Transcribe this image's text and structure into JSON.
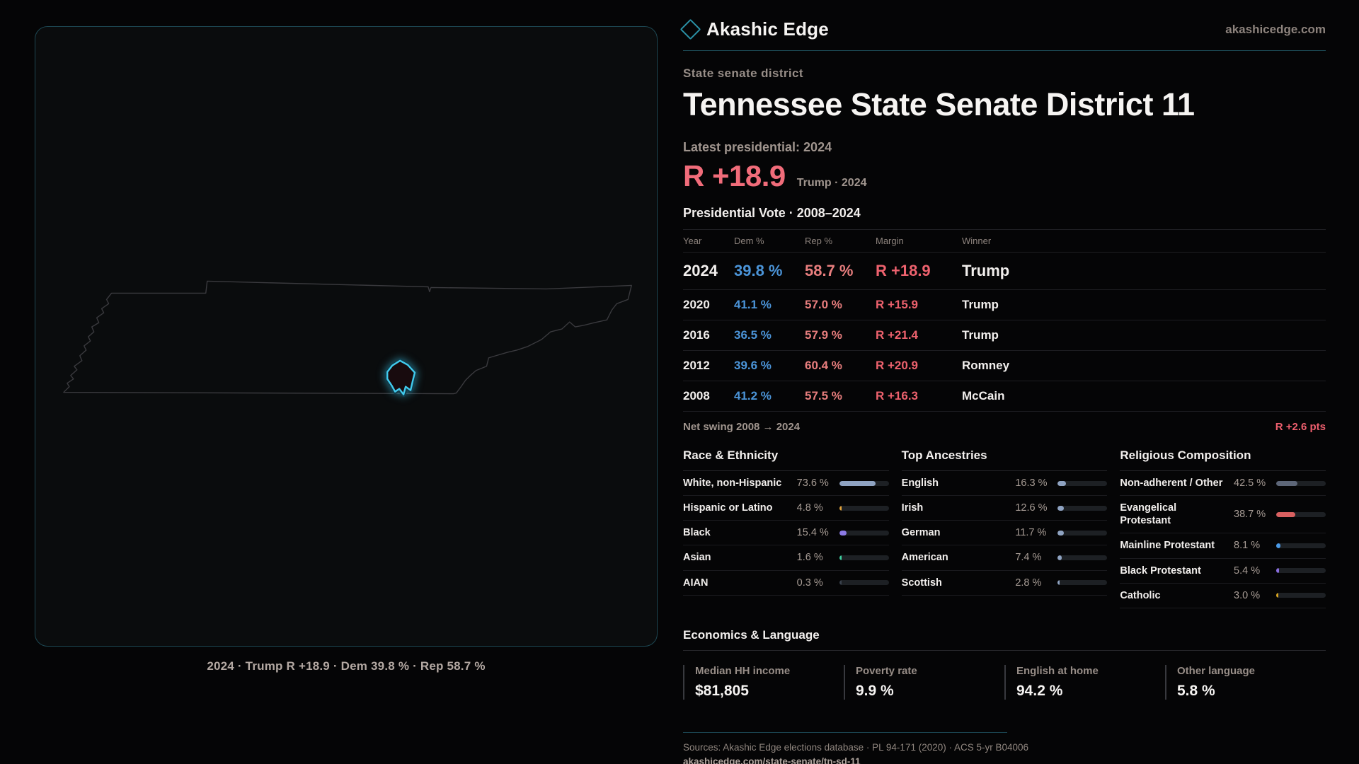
{
  "brand": {
    "name": "Akashic Edge",
    "domain": "akashicedge.com",
    "accent": "#2b93a8"
  },
  "page": {
    "subtitle": "State senate district",
    "title": "Tennessee State Senate District 11"
  },
  "latest": {
    "label": "Latest presidential: 2024",
    "margin": "R +18.9",
    "detail": "Trump · 2024",
    "margin_color": "#f16c7a"
  },
  "vote_table": {
    "title": "Presidential Vote · 2008–2024",
    "headers": [
      "Year",
      "Dem %",
      "Rep %",
      "Margin",
      "Winner"
    ],
    "rows": [
      {
        "year": "2024",
        "dem": "39.8 %",
        "rep": "58.7 %",
        "margin": "R +18.9",
        "winner": "Trump",
        "featured": true
      },
      {
        "year": "2020",
        "dem": "41.1 %",
        "rep": "57.0 %",
        "margin": "R +15.9",
        "winner": "Trump",
        "featured": false
      },
      {
        "year": "2016",
        "dem": "36.5 %",
        "rep": "57.9 %",
        "margin": "R +21.4",
        "winner": "Trump",
        "featured": false
      },
      {
        "year": "2012",
        "dem": "39.6 %",
        "rep": "60.4 %",
        "margin": "R +20.9",
        "winner": "Romney",
        "featured": false
      },
      {
        "year": "2008",
        "dem": "41.2 %",
        "rep": "57.5 %",
        "margin": "R +16.3",
        "winner": "McCain",
        "featured": false
      }
    ],
    "dem_color": "#4b94d8",
    "rep_color": "#e87e7e",
    "margin_color": "#ee626e",
    "net_swing_label": "Net swing 2008 → 2024",
    "net_swing_value": "R +2.6 pts"
  },
  "demographics": [
    {
      "heading": "Race & Ethnicity",
      "rows": [
        {
          "label": "White, non-Hispanic",
          "value": "73.6 %",
          "pct": 73.6,
          "color": "#8fa3c2"
        },
        {
          "label": "Hispanic or Latino",
          "value": "4.8 %",
          "pct": 4.8,
          "color": "#e3a43c"
        },
        {
          "label": "Black",
          "value": "15.4 %",
          "pct": 15.4,
          "color": "#8d7be6"
        },
        {
          "label": "Asian",
          "value": "1.6 %",
          "pct": 1.6,
          "color": "#3fd0a0"
        },
        {
          "label": "AIAN",
          "value": "0.3 %",
          "pct": 0.3,
          "color": "#8fa3c2"
        }
      ]
    },
    {
      "heading": "Top Ancestries",
      "rows": [
        {
          "label": "English",
          "value": "16.3 %",
          "pct": 16.3,
          "color": "#8fa3c2"
        },
        {
          "label": "Irish",
          "value": "12.6 %",
          "pct": 12.6,
          "color": "#8fa3c2"
        },
        {
          "label": "German",
          "value": "11.7 %",
          "pct": 11.7,
          "color": "#8fa3c2"
        },
        {
          "label": "American",
          "value": "7.4 %",
          "pct": 7.4,
          "color": "#8fa3c2"
        },
        {
          "label": "Scottish",
          "value": "2.8 %",
          "pct": 2.8,
          "color": "#8fa3c2"
        }
      ]
    },
    {
      "heading": "Religious Composition",
      "rows": [
        {
          "label": "Non-adherent / Other",
          "value": "42.5 %",
          "pct": 42.5,
          "color": "#5d6678"
        },
        {
          "label": "Evangelical Protestant",
          "value": "38.7 %",
          "pct": 38.7,
          "color": "#d96060"
        },
        {
          "label": "Mainline Protestant",
          "value": "8.1 %",
          "pct": 8.1,
          "color": "#4a9ae8"
        },
        {
          "label": "Black Protestant",
          "value": "5.4 %",
          "pct": 5.4,
          "color": "#8a6ee0"
        },
        {
          "label": "Catholic",
          "value": "3.0 %",
          "pct": 3.0,
          "color": "#d9a520"
        }
      ]
    }
  ],
  "economics": {
    "heading": "Economics & Language",
    "stats": [
      {
        "label": "Median HH income",
        "value": "$81,805"
      },
      {
        "label": "Poverty rate",
        "value": "9.9 %"
      },
      {
        "label": "English at home",
        "value": "94.2 %"
      },
      {
        "label": "Other language",
        "value": "5.8 %"
      }
    ]
  },
  "map": {
    "caption": "2024 · Trump R +18.9 · Dem 39.8 % · Rep 58.7 %",
    "district_accent": "#41cbee"
  },
  "footer": {
    "sources": "Sources: Akashic Edge elections database · PL 94-171 (2020) · ACS 5-yr B04006",
    "permalink": "akashicedge.com/state-senate/tn-sd-11"
  },
  "chart_data": [
    {
      "type": "table",
      "title": "Presidential Vote · 2008–2024",
      "columns": [
        "Year",
        "Dem %",
        "Rep %",
        "Margin",
        "Winner"
      ],
      "rows": [
        [
          2024,
          39.8,
          58.7,
          "R +18.9",
          "Trump"
        ],
        [
          2020,
          41.1,
          57.0,
          "R +15.9",
          "Trump"
        ],
        [
          2016,
          36.5,
          57.9,
          "R +21.4",
          "Trump"
        ],
        [
          2012,
          39.6,
          60.4,
          "R +20.9",
          "Romney"
        ],
        [
          2008,
          41.2,
          57.5,
          "R +16.3",
          "McCain"
        ]
      ],
      "annotations": [
        "Net swing 2008 → 2024: R +2.6 pts",
        "Latest presidential 2024: R +18.9 (Trump)"
      ]
    },
    {
      "type": "bar",
      "title": "Race & Ethnicity",
      "categories": [
        "White, non-Hispanic",
        "Hispanic or Latino",
        "Black",
        "Asian",
        "AIAN"
      ],
      "values": [
        73.6,
        4.8,
        15.4,
        1.6,
        0.3
      ],
      "xlabel": "",
      "ylabel": "%",
      "ylim": [
        0,
        100
      ]
    },
    {
      "type": "bar",
      "title": "Top Ancestries",
      "categories": [
        "English",
        "Irish",
        "German",
        "American",
        "Scottish"
      ],
      "values": [
        16.3,
        12.6,
        11.7,
        7.4,
        2.8
      ],
      "xlabel": "",
      "ylabel": "%",
      "ylim": [
        0,
        100
      ]
    },
    {
      "type": "bar",
      "title": "Religious Composition",
      "categories": [
        "Non-adherent / Other",
        "Evangelical Protestant",
        "Mainline Protestant",
        "Black Protestant",
        "Catholic"
      ],
      "values": [
        42.5,
        38.7,
        8.1,
        5.4,
        3.0
      ],
      "xlabel": "",
      "ylabel": "%",
      "ylim": [
        0,
        100
      ]
    },
    {
      "type": "bar",
      "title": "Economics & Language",
      "categories": [
        "Median HH income",
        "Poverty rate",
        "English at home",
        "Other language"
      ],
      "values": [
        81805,
        9.9,
        94.2,
        5.8
      ]
    }
  ]
}
